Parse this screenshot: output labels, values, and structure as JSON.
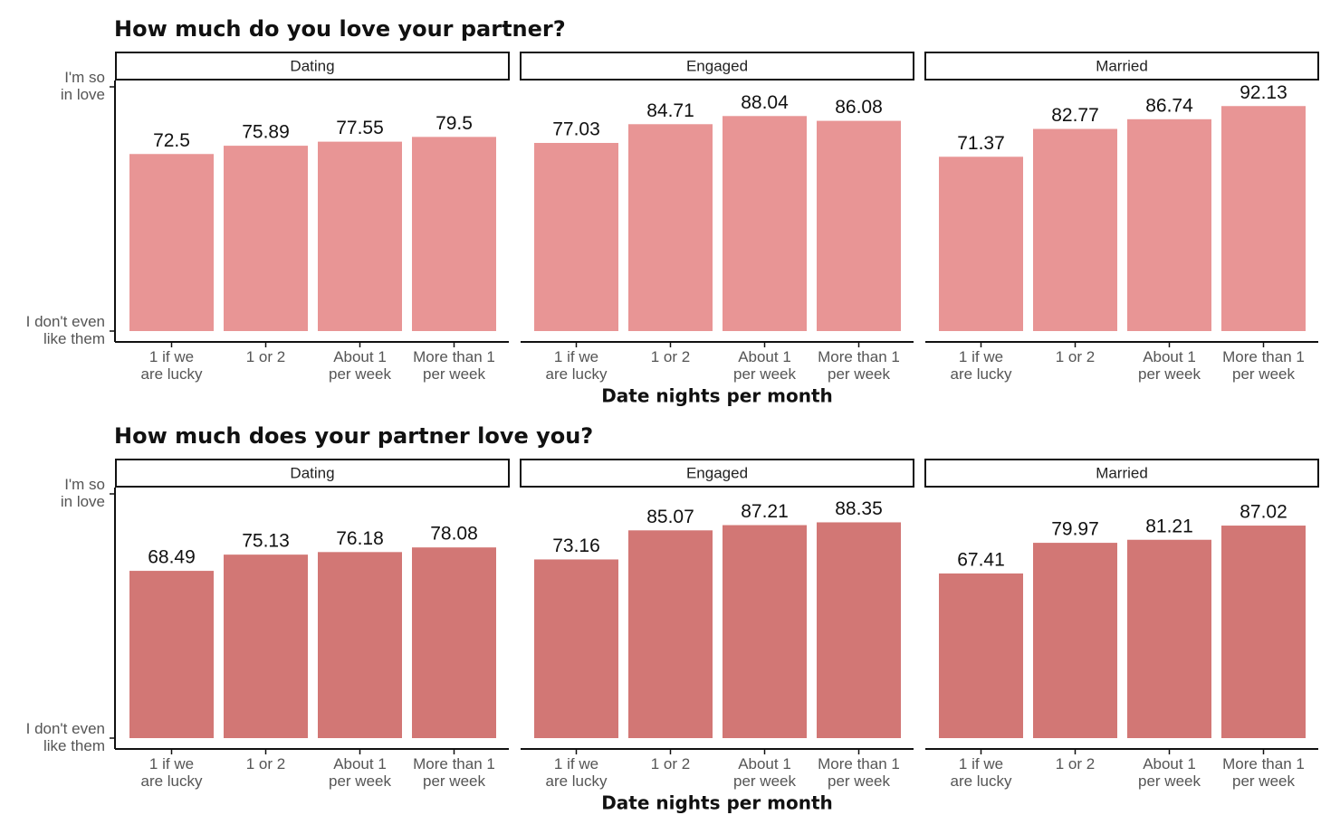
{
  "chart_data": [
    {
      "type": "bar",
      "title": "How much do you love your partner?",
      "xlabel": "Date nights per month",
      "ylabel": "",
      "ylim": [
        0,
        100
      ],
      "y_tick_labels": [
        {
          "value": 0,
          "lines": [
            "I don't even",
            "like them"
          ]
        },
        {
          "value": 100,
          "lines": [
            "I'm so",
            "in love"
          ]
        }
      ],
      "color": "#e89595",
      "categories": [
        [
          "1 if we",
          "are lucky"
        ],
        [
          "1 or 2"
        ],
        [
          "About 1",
          "per week"
        ],
        [
          "More than 1",
          "per week"
        ]
      ],
      "panels": [
        {
          "name": "Dating",
          "values": [
            72.5,
            75.89,
            77.55,
            79.5
          ]
        },
        {
          "name": "Engaged",
          "values": [
            77.03,
            84.71,
            88.04,
            86.08
          ]
        },
        {
          "name": "Married",
          "values": [
            71.37,
            82.77,
            86.74,
            92.13
          ]
        }
      ],
      "grid": false
    },
    {
      "type": "bar",
      "title": "How much does your partner love you?",
      "xlabel": "Date nights per month",
      "ylabel": "",
      "ylim": [
        0,
        100
      ],
      "y_tick_labels": [
        {
          "value": 0,
          "lines": [
            "I don't even",
            "like them"
          ]
        },
        {
          "value": 100,
          "lines": [
            "I'm so",
            "in love"
          ]
        }
      ],
      "color": "#d27775",
      "categories": [
        [
          "1 if we",
          "are lucky"
        ],
        [
          "1 or 2"
        ],
        [
          "About 1",
          "per week"
        ],
        [
          "More than 1",
          "per week"
        ]
      ],
      "panels": [
        {
          "name": "Dating",
          "values": [
            68.49,
            75.13,
            76.18,
            78.08
          ]
        },
        {
          "name": "Engaged",
          "values": [
            73.16,
            85.07,
            87.21,
            88.35
          ]
        },
        {
          "name": "Married",
          "values": [
            67.41,
            79.97,
            81.21,
            87.02
          ]
        }
      ],
      "grid": false
    }
  ]
}
